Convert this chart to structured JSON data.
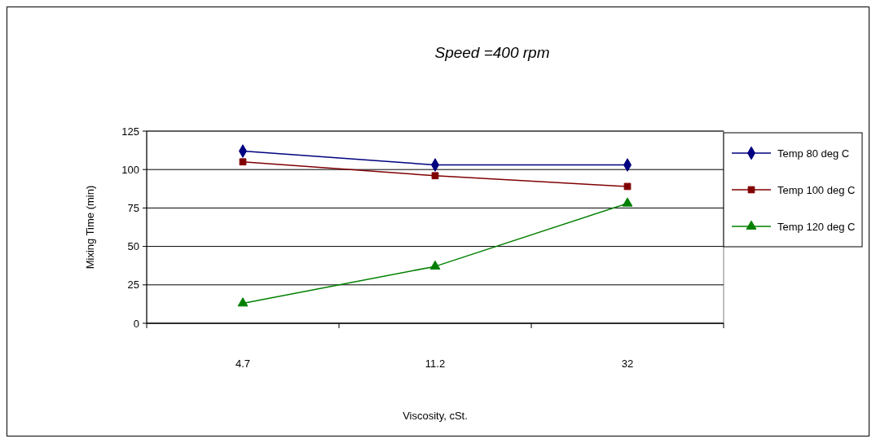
{
  "chart_data": {
    "type": "line",
    "title": "Speed =400 rpm",
    "xlabel": "Viscosity, cSt.",
    "ylabel": "Mixing Time (min)",
    "categories": [
      "4.7",
      "11.2",
      "32"
    ],
    "series": [
      {
        "name": "Temp 80 deg C",
        "color": "#000080",
        "marker": "diamond",
        "values": [
          112,
          103,
          103
        ]
      },
      {
        "name": "Temp 100 deg C",
        "color": "#800000",
        "marker": "square",
        "values": [
          105,
          96,
          89
        ]
      },
      {
        "name": "Temp 120 deg C",
        "color": "#008000",
        "marker": "triangle",
        "values": [
          13,
          37,
          78
        ]
      }
    ],
    "ylim": [
      0,
      125
    ],
    "yticks": [
      0,
      25,
      50,
      75,
      100,
      125
    ],
    "grid": "y",
    "legend": "right"
  }
}
